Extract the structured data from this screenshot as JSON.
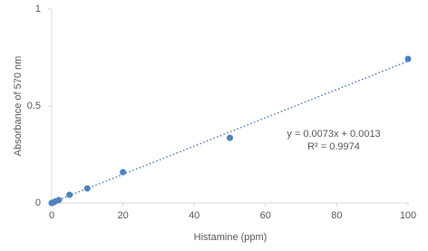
{
  "chart_data": {
    "type": "scatter",
    "x_label": "Histamine (ppm)",
    "y_label": "Absorbance of 570 nm",
    "x": [
      0,
      0.5,
      1,
      2,
      5,
      10,
      20,
      50,
      100
    ],
    "values": [
      0.0,
      0.003,
      0.008,
      0.015,
      0.042,
      0.075,
      0.159,
      0.336,
      0.743
    ],
    "color": "#4f81bd",
    "xlim": [
      0,
      100
    ],
    "xticks": [
      0,
      20,
      40,
      60,
      80,
      100
    ],
    "ylim": [
      0,
      1
    ],
    "yticks": [
      0,
      0.5,
      1
    ],
    "grid": false,
    "trendline": {
      "slope": 0.0073,
      "intercept": 0.0013,
      "color": "#4f81bd",
      "equation": "y = 0.0073x + 0.0013",
      "r_squared": "R² = 0.9974"
    }
  }
}
